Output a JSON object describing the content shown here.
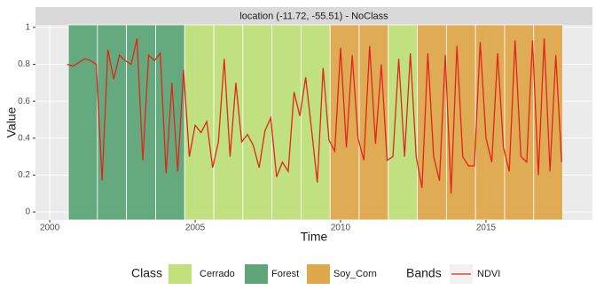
{
  "chart_data": {
    "type": "line",
    "strip_title": "location (-11.72, -55.51) - NoClass",
    "xlabel": "Time",
    "ylabel": "Value",
    "xlim": [
      1999.51,
      2018.66
    ],
    "ylim": [
      -0.043,
      1.014
    ],
    "xticks": [
      2000,
      2005,
      2010,
      2015
    ],
    "yticks": [
      0,
      0.2,
      0.4,
      0.6,
      0.8,
      1
    ],
    "grid": true,
    "class_legend_title": "Class",
    "classes": [
      {
        "name": "Cerrado",
        "color": "#bfe07a"
      },
      {
        "name": "Forest",
        "color": "#5ea679"
      },
      {
        "name": "Soy_Corn",
        "color": "#dfa84d"
      }
    ],
    "intervals": [
      {
        "start": 2000.64,
        "end": 2001.64,
        "class": 1
      },
      {
        "start": 2001.64,
        "end": 2002.64,
        "class": 1
      },
      {
        "start": 2002.64,
        "end": 2003.64,
        "class": 1
      },
      {
        "start": 2003.64,
        "end": 2004.64,
        "class": 1
      },
      {
        "start": 2004.64,
        "end": 2005.64,
        "class": 0
      },
      {
        "start": 2005.64,
        "end": 2006.64,
        "class": 0
      },
      {
        "start": 2006.64,
        "end": 2007.64,
        "class": 0
      },
      {
        "start": 2007.64,
        "end": 2008.64,
        "class": 0
      },
      {
        "start": 2008.64,
        "end": 2009.64,
        "class": 0
      },
      {
        "start": 2009.64,
        "end": 2010.64,
        "class": 2
      },
      {
        "start": 2010.64,
        "end": 2011.64,
        "class": 2
      },
      {
        "start": 2011.64,
        "end": 2012.64,
        "class": 0
      },
      {
        "start": 2012.64,
        "end": 2013.64,
        "class": 2
      },
      {
        "start": 2013.64,
        "end": 2014.64,
        "class": 2
      },
      {
        "start": 2014.64,
        "end": 2015.64,
        "class": 2
      },
      {
        "start": 2015.64,
        "end": 2016.64,
        "class": 2
      },
      {
        "start": 2016.64,
        "end": 2017.64,
        "class": 2
      }
    ],
    "series_legend_title": "Bands",
    "x": [
      2000.6,
      2000.8,
      2001.0,
      2001.2,
      2001.4,
      2001.6,
      2001.8,
      2002.0,
      2002.2,
      2002.4,
      2002.6,
      2002.8,
      2003.0,
      2003.2,
      2003.4,
      2003.6,
      2003.8,
      2004.0,
      2004.2,
      2004.4,
      2004.6,
      2004.8,
      2005.0,
      2005.2,
      2005.4,
      2005.6,
      2005.8,
      2006.0,
      2006.2,
      2006.4,
      2006.6,
      2006.8,
      2007.0,
      2007.2,
      2007.4,
      2007.6,
      2007.8,
      2008.0,
      2008.2,
      2008.4,
      2008.6,
      2008.8,
      2009.0,
      2009.2,
      2009.4,
      2009.6,
      2009.8,
      2010.0,
      2010.2,
      2010.4,
      2010.6,
      2010.8,
      2011.0,
      2011.2,
      2011.4,
      2011.6,
      2011.8,
      2012.0,
      2012.2,
      2012.4,
      2012.6,
      2012.8,
      2013.0,
      2013.2,
      2013.4,
      2013.6,
      2013.8,
      2014.0,
      2014.2,
      2014.4,
      2014.6,
      2014.8,
      2015.0,
      2015.2,
      2015.4,
      2015.6,
      2015.8,
      2016.0,
      2016.2,
      2016.4,
      2016.6,
      2016.8,
      2017.0,
      2017.2,
      2017.4,
      2017.6
    ],
    "series": [
      {
        "name": "NDVI",
        "color": "#e0261b",
        "values": [
          0.8,
          0.79,
          0.81,
          0.83,
          0.82,
          0.8,
          0.17,
          0.88,
          0.72,
          0.85,
          0.82,
          0.8,
          0.94,
          0.28,
          0.85,
          0.82,
          0.86,
          0.21,
          0.7,
          0.22,
          0.77,
          0.3,
          0.47,
          0.43,
          0.49,
          0.24,
          0.38,
          0.83,
          0.3,
          0.7,
          0.38,
          0.42,
          0.36,
          0.24,
          0.44,
          0.51,
          0.19,
          0.27,
          0.22,
          0.65,
          0.52,
          0.73,
          0.45,
          0.16,
          0.78,
          0.39,
          0.33,
          0.89,
          0.35,
          0.85,
          0.4,
          0.28,
          0.9,
          0.37,
          0.8,
          0.28,
          0.3,
          0.83,
          0.3,
          0.86,
          0.3,
          0.13,
          0.86,
          0.3,
          0.17,
          0.85,
          0.1,
          0.9,
          0.3,
          0.25,
          0.25,
          0.92,
          0.4,
          0.27,
          0.86,
          0.35,
          0.22,
          0.93,
          0.3,
          0.27,
          0.93,
          0.2,
          0.94,
          0.22,
          0.85,
          0.27
        ]
      }
    ]
  }
}
